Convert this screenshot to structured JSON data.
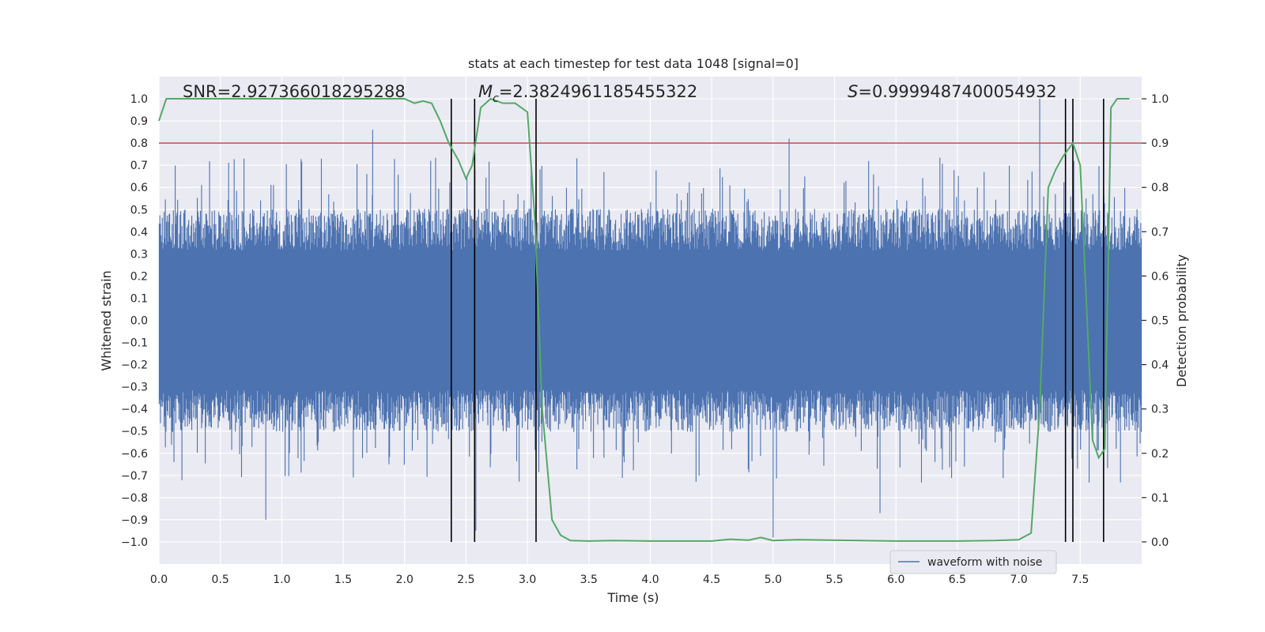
{
  "chart_data": {
    "type": "line",
    "title": "stats at each timestep for test data 1048 [signal=0]",
    "xlabel": "Time (s)",
    "ylabel": "Whitened strain",
    "y2label": "Detection probability",
    "xlim": [
      0.0,
      8.0
    ],
    "ylim": [
      -1.1,
      1.1
    ],
    "y2lim": [
      -0.05,
      1.05
    ],
    "x_ticks": [
      "0.0",
      "0.5",
      "1.0",
      "1.5",
      "2.0",
      "2.5",
      "3.0",
      "3.5",
      "4.0",
      "4.5",
      "5.0",
      "5.5",
      "6.0",
      "6.5",
      "7.0",
      "7.5"
    ],
    "y_ticks": [
      "1.0",
      "0.9",
      "0.8",
      "0.7",
      "0.6",
      "0.5",
      "0.4",
      "0.3",
      "0.2",
      "0.1",
      "0.0",
      "−0.1",
      "−0.2",
      "−0.3",
      "−0.4",
      "−0.5",
      "−0.6",
      "−0.7",
      "−0.8",
      "−0.9",
      "−1.0"
    ],
    "y2_ticks": [
      "1.0",
      "0.9",
      "0.8",
      "0.7",
      "0.6",
      "0.5",
      "0.4",
      "0.3",
      "0.2",
      "0.1",
      "0.0"
    ],
    "annotations": {
      "snr": "SNR=2.927366018295288",
      "mc_symbol": "M",
      "mc_sub": "c",
      "mc_value": "=2.3824961185455322",
      "s_symbol": "S",
      "s_value": "=0.9999487400054932"
    },
    "threshold": 0.8,
    "event_lines": [
      2.38,
      2.57,
      3.07,
      7.38,
      7.44,
      7.69
    ],
    "waveform": {
      "name": "waveform with noise",
      "color": "#4c72b0",
      "duration": 8.0,
      "typical_amplitude": 0.42,
      "spikes": [
        {
          "t": 0.87,
          "v": -0.9
        },
        {
          "t": 1.74,
          "v": 0.86
        },
        {
          "t": 2.58,
          "v": -0.95
        },
        {
          "t": 3.03,
          "v": 0.72
        },
        {
          "t": 5.0,
          "v": -0.98
        },
        {
          "t": 5.13,
          "v": 0.82
        },
        {
          "t": 5.87,
          "v": -0.87
        },
        {
          "t": 7.17,
          "v": 1.0
        }
      ]
    },
    "probability": {
      "name": "Detection probability",
      "color": "#55a868",
      "x": [
        0.0,
        0.06,
        0.5,
        1.0,
        1.5,
        2.0,
        2.08,
        2.15,
        2.22,
        2.29,
        2.36,
        2.44,
        2.5,
        2.55,
        2.62,
        2.7,
        2.8,
        2.9,
        3.0,
        3.06,
        3.12,
        3.2,
        3.27,
        3.35,
        3.5,
        3.7,
        4.0,
        4.5,
        4.65,
        4.8,
        4.9,
        5.0,
        5.2,
        6.0,
        6.5,
        6.8,
        7.0,
        7.1,
        7.17,
        7.24,
        7.3,
        7.36,
        7.44,
        7.5,
        7.6,
        7.65,
        7.7,
        7.75,
        7.8,
        7.9
      ],
      "y": [
        0.95,
        1.0,
        1.0,
        1.0,
        1.0,
        1.0,
        0.99,
        0.995,
        0.99,
        0.95,
        0.9,
        0.86,
        0.82,
        0.85,
        0.98,
        1.0,
        0.99,
        0.99,
        0.97,
        0.73,
        0.3,
        0.05,
        0.015,
        0.003,
        0.002,
        0.003,
        0.002,
        0.002,
        0.006,
        0.004,
        0.01,
        0.003,
        0.005,
        0.002,
        0.002,
        0.003,
        0.005,
        0.02,
        0.3,
        0.8,
        0.84,
        0.87,
        0.9,
        0.85,
        0.23,
        0.19,
        0.21,
        0.98,
        1.0,
        1.0
      ]
    },
    "threshold_color": "#c44e52",
    "event_line_color": "#000000",
    "grid": true,
    "legend": {
      "position": "bottom-right",
      "entries": [
        "waveform with noise"
      ]
    }
  }
}
